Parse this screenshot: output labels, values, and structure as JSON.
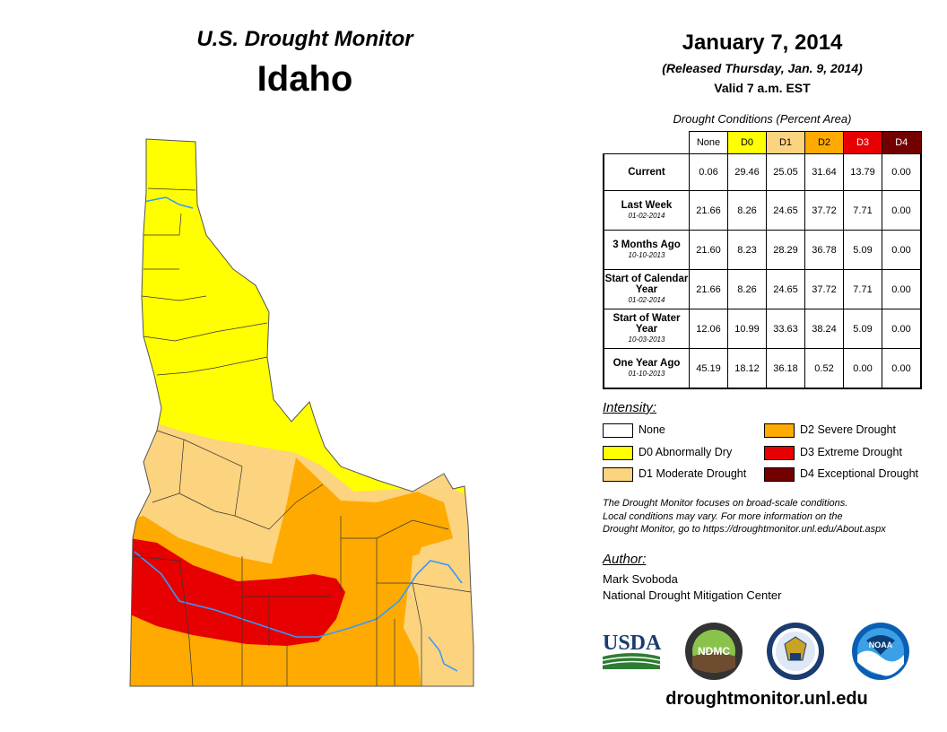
{
  "header": {
    "title": "U.S. Drought Monitor",
    "state": "Idaho"
  },
  "date": {
    "date": "January 7, 2014",
    "released": "(Released Thursday, Jan. 9, 2014)",
    "valid": "Valid 7 a.m. EST"
  },
  "table": {
    "caption": "Drought Conditions (Percent Area)",
    "columns": [
      "None",
      "D0",
      "D1",
      "D2",
      "D3",
      "D4"
    ],
    "column_colors": [
      "#ffffff",
      "#ffff00",
      "#fcd37f",
      "#ffaa00",
      "#e60000",
      "#730000"
    ],
    "rows": [
      {
        "label": "Current",
        "sub": "",
        "values": [
          "0.06",
          "29.46",
          "25.05",
          "31.64",
          "13.79",
          "0.00"
        ]
      },
      {
        "label": "Last Week",
        "sub": "01-02-2014",
        "values": [
          "21.66",
          "8.26",
          "24.65",
          "37.72",
          "7.71",
          "0.00"
        ]
      },
      {
        "label": "3 Months Ago",
        "sub": "10-10-2013",
        "values": [
          "21.60",
          "8.23",
          "28.29",
          "36.78",
          "5.09",
          "0.00"
        ]
      },
      {
        "label": "Start of Calendar Year",
        "sub": "01-02-2014",
        "values": [
          "21.66",
          "8.26",
          "24.65",
          "37.72",
          "7.71",
          "0.00"
        ]
      },
      {
        "label": "Start of Water Year",
        "sub": "10-03-2013",
        "values": [
          "12.06",
          "10.99",
          "33.63",
          "38.24",
          "5.09",
          "0.00"
        ]
      },
      {
        "label": "One Year Ago",
        "sub": "01-10-2013",
        "values": [
          "45.19",
          "18.12",
          "36.18",
          "0.52",
          "0.00",
          "0.00"
        ]
      }
    ]
  },
  "legend": {
    "title": "Intensity:",
    "items": [
      {
        "label": "None",
        "color": "#ffffff"
      },
      {
        "label": "D0 Abnormally Dry",
        "color": "#ffff00"
      },
      {
        "label": "D1 Moderate Drought",
        "color": "#fcd37f"
      },
      {
        "label": "D2 Severe Drought",
        "color": "#ffaa00"
      },
      {
        "label": "D3 Extreme Drought",
        "color": "#e60000"
      },
      {
        "label": "D4 Exceptional Drought",
        "color": "#730000"
      }
    ]
  },
  "note": {
    "line1": "The Drought Monitor focuses on broad-scale conditions.",
    "line2": "Local conditions may vary. For more information on the",
    "line3": "Drought Monitor, go to https://droughtmonitor.unl.edu/About.aspx"
  },
  "author": {
    "title": "Author:",
    "name": "Mark Svoboda",
    "org": "National Drought Mitigation Center"
  },
  "logos": {
    "usda": "USDA",
    "ndmc": "NDMC",
    "noaa": "NOAA"
  },
  "site": "droughtmonitor.unl.edu"
}
